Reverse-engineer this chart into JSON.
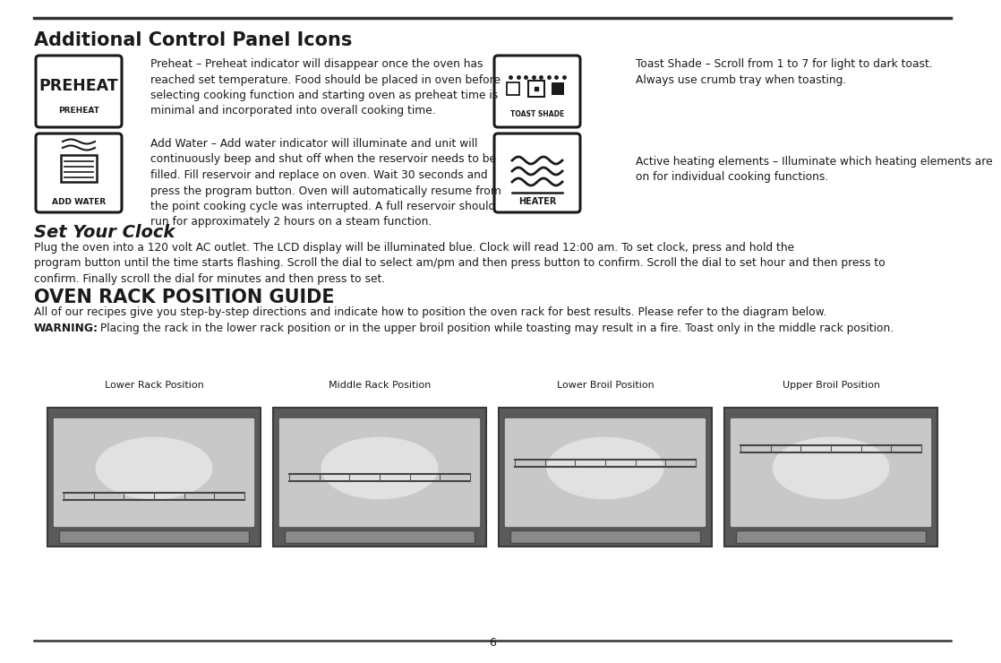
{
  "bg_color": "#ffffff",
  "line_color": "#333333",
  "page_number": "6",
  "section1_title": "Additional Control Panel Icons",
  "section2_title": "Set Your Clock",
  "section3_title": "OVEN RACK POSITION GUIDE",
  "preheat_text": "Preheat – Preheat indicator will disappear once the oven has\nreached set temperature. Food should be placed in oven before\nselecting cooking function and starting oven as preheat time is\nminimal and incorporated into overall cooking time.",
  "add_water_text": "Add Water – Add water indicator will illuminate and unit will\ncontinuously beep and shut off when the reservoir needs to be\nfilled. Fill reservoir and replace on oven. Wait 30 seconds and\npress the program button. Oven will automatically resume from\nthe point cooking cycle was interrupted. A full reservoir should\nrun for approximately 2 hours on a steam function.",
  "toast_shade_text": "Toast Shade – Scroll from 1 to 7 for light to dark toast.\nAlways use crumb tray when toasting.",
  "heater_text": "Active heating elements – Illuminate which heating elements are\non for individual cooking functions.",
  "set_clock_text": "Plug the oven into a 120 volt AC outlet. The LCD display will be illuminated blue. Clock will read 12:00 am. To set clock, press and hold the\nprogram button until the time starts flashing. Scroll the dial to select am/pm and then press button to confirm. Scroll the dial to set hour and then press to\nconfirm. Finally scroll the dial for minutes and then press to set.",
  "oven_rack_text": "All of our recipes give you step-by-step directions and indicate how to position the oven rack for best results. Please refer to the diagram below.",
  "warning_bold": "WARNING:",
  "warning_text": " Placing the rack in the lower rack position or in the upper broil position while toasting may result in a fire. Toast only in the middle rack position.",
  "rack_positions": [
    "Lower Rack Position",
    "Middle Rack Position",
    "Lower Broil Position",
    "Upper Broil Position"
  ],
  "icon_border_color": "#1a1a1a",
  "text_color": "#1a1a1a",
  "body_fontsize": 8.8,
  "title1_fontsize": 15,
  "title2_fontsize": 14,
  "title3_fontsize": 15,
  "label_fontsize": 8.0
}
